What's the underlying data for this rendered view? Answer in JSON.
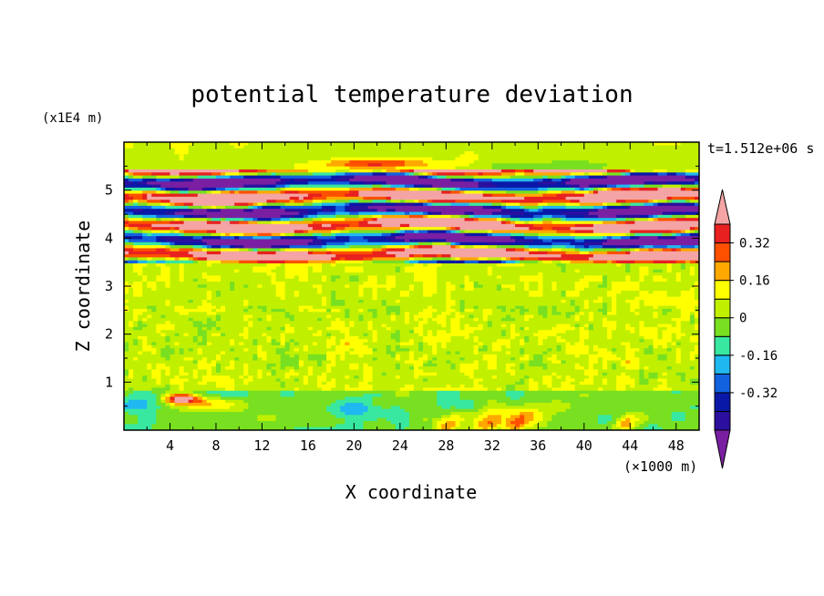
{
  "chart_data": {
    "type": "heatmap",
    "title": "potential temperature deviation",
    "xlabel": "X coordinate",
    "ylabel": "Z coordinate",
    "x_unit": "(×1000 m)",
    "y_unit": "(x1E4 m)",
    "time_label": "t=1.512e+06 s",
    "xlim": [
      0,
      50
    ],
    "ylim": [
      0,
      6
    ],
    "x_ticks": [
      4,
      8,
      12,
      16,
      20,
      24,
      28,
      32,
      36,
      40,
      44,
      48
    ],
    "y_ticks": [
      1,
      2,
      3,
      4,
      5
    ],
    "colorbar": {
      "levels": [
        -0.48,
        -0.4,
        -0.32,
        -0.24,
        -0.16,
        -0.08,
        0,
        0.08,
        0.16,
        0.24,
        0.32,
        0.4
      ],
      "tick_labels": [
        "0.32",
        "0.16",
        "0",
        "-0.16",
        "-0.32"
      ],
      "tick_values": [
        0.32,
        0.16,
        0,
        -0.16,
        -0.32
      ],
      "colors_low_to_high": [
        "#7a1fa2",
        "#2b0f9e",
        "#0a18a8",
        "#1262e0",
        "#20b8f0",
        "#38e8a0",
        "#78e020",
        "#c0f000",
        "#ffff00",
        "#ffa800",
        "#ff5000",
        "#e82020",
        "#f4a4a4"
      ],
      "extend": "both"
    },
    "bands": [
      {
        "z": [
          0.0,
          0.8
        ],
        "pattern": "cyan-green-near-zero, warm cells near x=5, yellow-orange near x=28-36"
      },
      {
        "z": [
          0.8,
          3.5
        ],
        "pattern": "green-cyan noise around 0"
      },
      {
        "z": [
          3.5,
          5.4
        ],
        "pattern": "alternating strong positive (pink/red) and negative (purple/blue) layers"
      },
      {
        "z": [
          5.4,
          6.0
        ],
        "pattern": "green near zero"
      }
    ]
  }
}
